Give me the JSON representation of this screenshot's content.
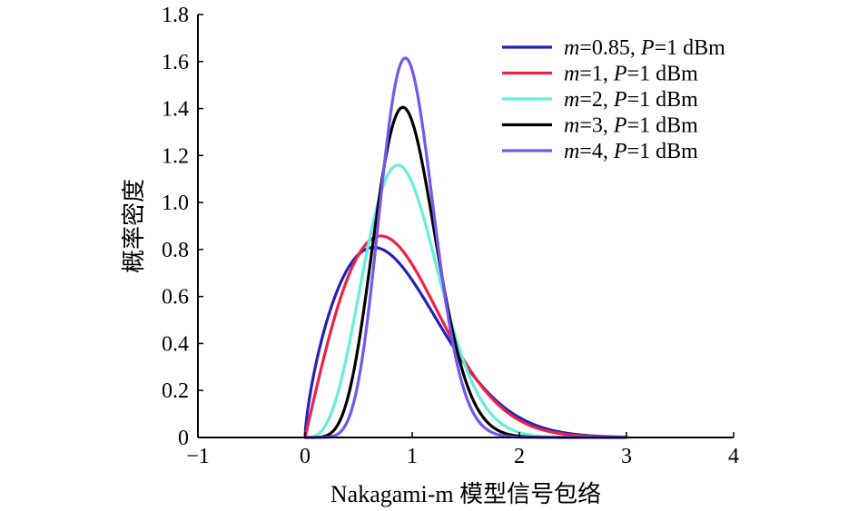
{
  "chart_data": {
    "type": "line",
    "title": "",
    "xlabel": "Nakagami-m 模型信号包络",
    "ylabel": "概率密度",
    "xlim": [
      -1,
      4
    ],
    "ylim": [
      0,
      1.8
    ],
    "xticks": [
      -1,
      0,
      1,
      2,
      3,
      4
    ],
    "xtick_labels": [
      "−1",
      "0",
      "1",
      "2",
      "3",
      "4"
    ],
    "yticks": [
      0,
      0.2,
      0.4,
      0.6,
      0.8,
      1.0,
      1.2,
      1.4,
      1.6,
      1.8
    ],
    "ytick_labels": [
      "0",
      "0.2",
      "0.4",
      "0.6",
      "0.8",
      "1.0",
      "1.2",
      "1.4",
      "1.6",
      "1.8"
    ],
    "grid": false,
    "legend_position": "top-right",
    "series": [
      {
        "name": "m=0.85, P=1 dBm",
        "label_parts": [
          {
            "t": "m",
            "i": true
          },
          {
            "t": "=0.85, ",
            "i": false
          },
          {
            "t": "P",
            "i": true
          },
          {
            "t": "=1 dBm",
            "i": false
          }
        ],
        "color": "#2222bb",
        "m": 0.85,
        "omega": 1.0,
        "x": [
          0,
          0.1,
          0.2,
          0.3,
          0.4,
          0.5,
          0.6,
          0.7,
          0.8,
          0.9,
          1.0,
          1.2,
          1.4,
          1.6,
          1.8,
          2.0,
          2.2,
          2.4,
          2.6,
          2.8,
          3.0
        ],
        "y": [
          0,
          0.25,
          0.43,
          0.58,
          0.7,
          0.77,
          0.81,
          0.8,
          0.76,
          0.69,
          0.62,
          0.49,
          0.35,
          0.22,
          0.13,
          0.07,
          0.03,
          0.01,
          0.004,
          0.001,
          0
        ]
      },
      {
        "name": "m=1, P=1 dBm",
        "label_parts": [
          {
            "t": "m",
            "i": true
          },
          {
            "t": "=1, ",
            "i": false
          },
          {
            "t": "P",
            "i": true
          },
          {
            "t": "=1 dBm",
            "i": false
          }
        ],
        "color": "#ee2244",
        "m": 1,
        "omega": 1.0,
        "x": [
          0,
          0.1,
          0.2,
          0.3,
          0.4,
          0.5,
          0.6,
          0.7,
          0.8,
          0.9,
          1.0,
          1.2,
          1.4,
          1.6,
          1.8,
          2.0,
          2.2,
          2.4,
          2.6,
          2.8,
          3.0
        ],
        "y": [
          0,
          0.2,
          0.38,
          0.55,
          0.68,
          0.78,
          0.84,
          0.86,
          0.84,
          0.8,
          0.74,
          0.57,
          0.39,
          0.25,
          0.14,
          0.07,
          0.03,
          0.01,
          0.003,
          0.001,
          0
        ]
      },
      {
        "name": "m=2, P=1 dBm",
        "label_parts": [
          {
            "t": "m",
            "i": true
          },
          {
            "t": "=2, ",
            "i": false
          },
          {
            "t": "P",
            "i": true
          },
          {
            "t": "=1 dBm",
            "i": false
          }
        ],
        "color": "#66eedd",
        "m": 2,
        "omega": 1.0,
        "x": [
          0,
          0.1,
          0.2,
          0.3,
          0.4,
          0.5,
          0.6,
          0.7,
          0.8,
          0.9,
          1.0,
          1.2,
          1.4,
          1.6,
          1.8,
          2.0,
          2.2,
          2.4,
          2.6
        ],
        "y": [
          0,
          0.01,
          0.06,
          0.18,
          0.36,
          0.59,
          0.82,
          1.02,
          1.14,
          1.16,
          1.08,
          0.76,
          0.42,
          0.18,
          0.06,
          0.02,
          0.004,
          0.001,
          0
        ]
      },
      {
        "name": "m=3, P=1 dBm",
        "label_parts": [
          {
            "t": "m",
            "i": true
          },
          {
            "t": "=3, ",
            "i": false
          },
          {
            "t": "P",
            "i": true
          },
          {
            "t": "=1 dBm",
            "i": false
          }
        ],
        "color": "#000000",
        "m": 3,
        "omega": 1.0,
        "x": [
          0,
          0.1,
          0.2,
          0.3,
          0.4,
          0.5,
          0.6,
          0.7,
          0.8,
          0.9,
          1.0,
          1.2,
          1.4,
          1.6,
          1.8,
          2.0,
          2.2,
          2.4
        ],
        "y": [
          0,
          0.0,
          0.01,
          0.05,
          0.15,
          0.34,
          0.64,
          0.98,
          1.27,
          1.4,
          1.34,
          0.86,
          0.37,
          0.11,
          0.02,
          0.003,
          0,
          0
        ]
      },
      {
        "name": "m=4, P=1 dBm",
        "label_parts": [
          {
            "t": "m",
            "i": true
          },
          {
            "t": "=4, ",
            "i": false
          },
          {
            "t": "P",
            "i": true
          },
          {
            "t": "=1 dBm",
            "i": false
          }
        ],
        "color": "#7755ee",
        "m": 4,
        "omega": 1.0,
        "x": [
          0,
          0.1,
          0.2,
          0.3,
          0.4,
          0.5,
          0.6,
          0.7,
          0.8,
          0.9,
          1.0,
          1.2,
          1.4,
          1.6,
          1.8,
          2.0,
          2.2
        ],
        "y": [
          0,
          0.0,
          0.0,
          0.01,
          0.06,
          0.19,
          0.47,
          0.89,
          1.34,
          1.61,
          1.56,
          0.86,
          0.28,
          0.05,
          0.006,
          0.001,
          0
        ]
      }
    ]
  }
}
